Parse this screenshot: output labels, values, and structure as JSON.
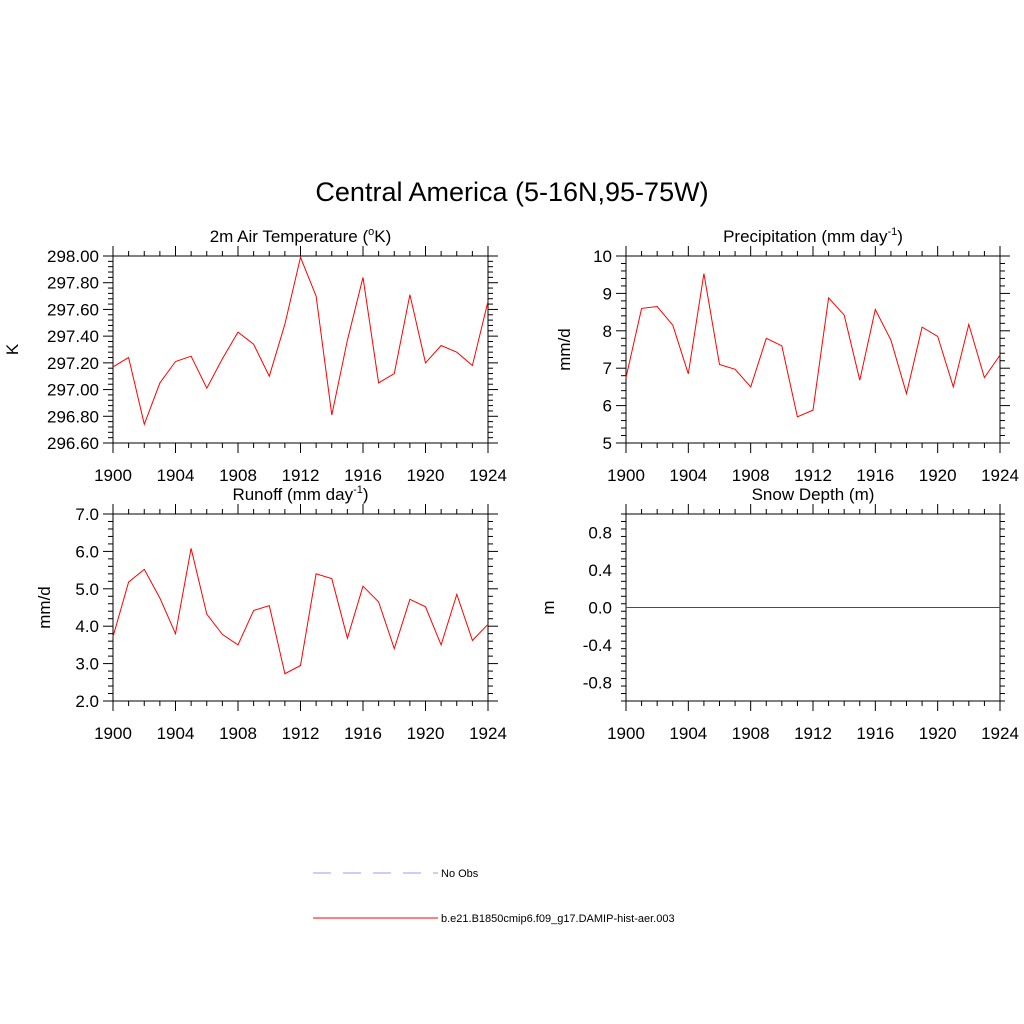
{
  "figure": {
    "title": "Central America (5-16N,95-75W)"
  },
  "legend": {
    "entries": [
      {
        "label": "No Obs",
        "color": "#9999ff",
        "dash": true
      },
      {
        "label": "b.e21.B1850cmip6.f09_g17.DAMIP-hist-aer.003",
        "color": "#ff0000",
        "dash": false
      }
    ]
  },
  "chart_data": [
    {
      "type": "line",
      "title": "2m Air Temperature (",
      "title_sup": "o",
      "title_tail": "K)",
      "ylabel": "K",
      "xlim": [
        1900,
        1924
      ],
      "ylim": [
        296.6,
        298.0
      ],
      "xticks": [
        1900,
        1904,
        1908,
        1912,
        1916,
        1920,
        1924
      ],
      "yticks": [
        296.6,
        296.8,
        297.0,
        297.2,
        297.4,
        297.6,
        297.8,
        298.0
      ],
      "ytick_labels": [
        "296.60",
        "296.80",
        "297.00",
        "297.20",
        "297.40",
        "297.60",
        "297.80",
        "298.00"
      ],
      "x": [
        1900,
        1901,
        1902,
        1903,
        1904,
        1905,
        1906,
        1907,
        1908,
        1909,
        1910,
        1911,
        1912,
        1913,
        1914,
        1915,
        1916,
        1917,
        1918,
        1919,
        1920,
        1921,
        1922,
        1923,
        1924
      ],
      "series": [
        {
          "color": "#ff0000",
          "values": [
            297.17,
            297.24,
            296.74,
            297.05,
            297.21,
            297.25,
            297.01,
            297.23,
            297.43,
            297.34,
            297.1,
            297.49,
            297.99,
            297.7,
            296.81,
            297.37,
            297.84,
            297.05,
            297.12,
            297.71,
            297.2,
            297.33,
            297.28,
            297.18,
            297.66
          ]
        }
      ]
    },
    {
      "type": "line",
      "title": "Precipitation (mm day",
      "title_sup": "-1",
      "title_tail": ")",
      "ylabel": "mm/d",
      "xlim": [
        1900,
        1924
      ],
      "ylim": [
        5,
        10
      ],
      "xticks": [
        1900,
        1904,
        1908,
        1912,
        1916,
        1920,
        1924
      ],
      "yticks": [
        5,
        6,
        7,
        8,
        9,
        10
      ],
      "ytick_labels": [
        "5",
        "6",
        "7",
        "8",
        "9",
        "10"
      ],
      "x": [
        1900,
        1901,
        1902,
        1903,
        1904,
        1905,
        1906,
        1907,
        1908,
        1909,
        1910,
        1911,
        1912,
        1913,
        1914,
        1915,
        1916,
        1917,
        1918,
        1919,
        1920,
        1921,
        1922,
        1923,
        1924
      ],
      "series": [
        {
          "color": "#ff0000",
          "values": [
            6.75,
            8.6,
            8.65,
            8.15,
            6.85,
            9.53,
            7.1,
            6.97,
            6.5,
            7.8,
            7.6,
            5.7,
            5.88,
            8.88,
            8.42,
            6.68,
            8.57,
            7.75,
            6.32,
            8.1,
            7.85,
            6.5,
            8.17,
            6.75,
            7.35
          ]
        }
      ]
    },
    {
      "type": "line",
      "title": "Runoff (mm day",
      "title_sup": "-1",
      "title_tail": ")",
      "ylabel": "mm/d",
      "xlim": [
        1900,
        1924
      ],
      "ylim": [
        2.0,
        7.0
      ],
      "xticks": [
        1900,
        1904,
        1908,
        1912,
        1916,
        1920,
        1924
      ],
      "yticks": [
        2,
        3,
        4,
        5,
        6,
        7
      ],
      "ytick_labels": [
        "2.0",
        "3.0",
        "4.0",
        "5.0",
        "6.0",
        "7.0"
      ],
      "x": [
        1900,
        1901,
        1902,
        1903,
        1904,
        1905,
        1906,
        1907,
        1908,
        1909,
        1910,
        1911,
        1912,
        1913,
        1914,
        1915,
        1916,
        1917,
        1918,
        1919,
        1920,
        1921,
        1922,
        1923,
        1924
      ],
      "series": [
        {
          "color": "#ff0000",
          "values": [
            3.72,
            5.18,
            5.52,
            4.75,
            3.8,
            6.08,
            4.32,
            3.78,
            3.5,
            4.42,
            4.55,
            2.73,
            2.95,
            5.4,
            5.27,
            3.68,
            5.07,
            4.65,
            3.4,
            4.72,
            4.52,
            3.5,
            4.85,
            3.62,
            4.05
          ]
        }
      ]
    },
    {
      "type": "line",
      "title": "Snow Depth (m)",
      "title_sup": "",
      "title_tail": "",
      "ylabel": "m",
      "xlim": [
        1900,
        1924
      ],
      "ylim": [
        -1.0,
        1.0
      ],
      "xticks": [
        1900,
        1904,
        1908,
        1912,
        1916,
        1920,
        1924
      ],
      "yticks": [
        -0.8,
        -0.4,
        0.0,
        0.4,
        0.8
      ],
      "ytick_labels": [
        "-0.8",
        "-0.4",
        "0.0",
        "0.4",
        "0.8"
      ],
      "x": [
        1900,
        1901,
        1902,
        1903,
        1904,
        1905,
        1906,
        1907,
        1908,
        1909,
        1910,
        1911,
        1912,
        1913,
        1914,
        1915,
        1916,
        1917,
        1918,
        1919,
        1920,
        1921,
        1922,
        1923,
        1924
      ],
      "series": [
        {
          "color": "#ff0000",
          "values": [
            0,
            0,
            0,
            0,
            0,
            0,
            0,
            0,
            0,
            0,
            0,
            0,
            0,
            0,
            0,
            0,
            0,
            0,
            0,
            0,
            0,
            0,
            0,
            0,
            0
          ]
        }
      ]
    }
  ]
}
